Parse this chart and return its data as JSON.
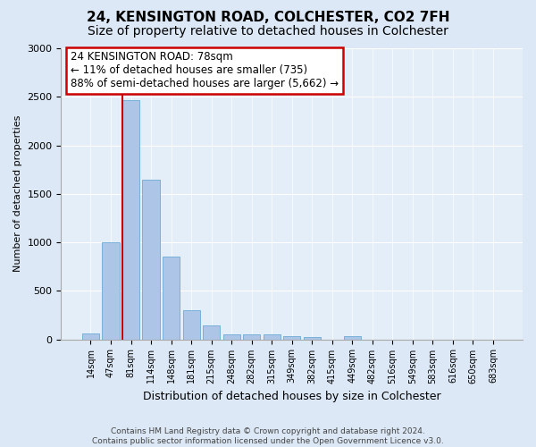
{
  "title": "24, KENSINGTON ROAD, COLCHESTER, CO2 7FH",
  "subtitle": "Size of property relative to detached houses in Colchester",
  "xlabel": "Distribution of detached houses by size in Colchester",
  "ylabel": "Number of detached properties",
  "categories": [
    "14sqm",
    "47sqm",
    "81sqm",
    "114sqm",
    "148sqm",
    "181sqm",
    "215sqm",
    "248sqm",
    "282sqm",
    "315sqm",
    "349sqm",
    "382sqm",
    "415sqm",
    "449sqm",
    "482sqm",
    "516sqm",
    "549sqm",
    "583sqm",
    "616sqm",
    "650sqm",
    "683sqm"
  ],
  "values": [
    60,
    1000,
    2470,
    1650,
    850,
    300,
    140,
    55,
    55,
    55,
    35,
    20,
    0,
    35,
    0,
    0,
    0,
    0,
    0,
    0,
    0
  ],
  "bar_color": "#adc6e8",
  "bar_edge_color": "#6aaad4",
  "property_line_color": "#cc0000",
  "annotation_text": "24 KENSINGTON ROAD: 78sqm\n← 11% of detached houses are smaller (735)\n88% of semi-detached houses are larger (5,662) →",
  "annotation_box_facecolor": "#ffffff",
  "annotation_box_edgecolor": "#cc0000",
  "ylim": [
    0,
    3000
  ],
  "yticks": [
    0,
    500,
    1000,
    1500,
    2000,
    2500,
    3000
  ],
  "background_color": "#dce8f5",
  "plot_background_color": "#e4eef8",
  "footer_line1": "Contains HM Land Registry data © Crown copyright and database right 2024.",
  "footer_line2": "Contains public sector information licensed under the Open Government Licence v3.0.",
  "title_fontsize": 11,
  "subtitle_fontsize": 10,
  "xlabel_fontsize": 9,
  "ylabel_fontsize": 8,
  "tick_fontsize": 8,
  "xtick_fontsize": 7
}
